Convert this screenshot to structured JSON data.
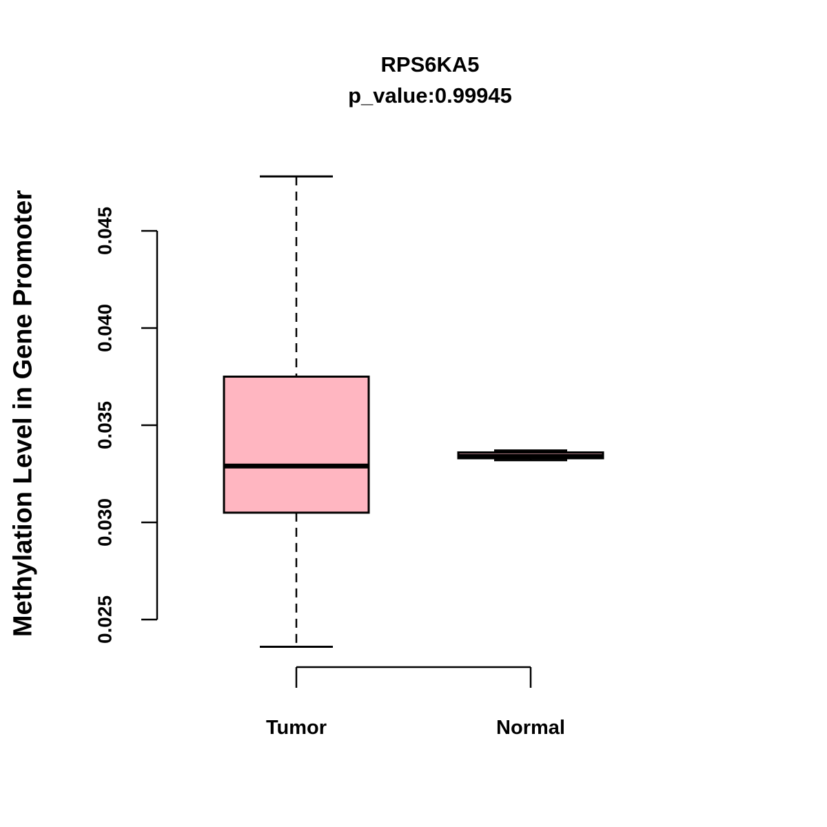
{
  "chart_data": {
    "type": "boxplot",
    "title": "RPS6KA5",
    "subtitle": "p_value:0.99945",
    "ylabel": "Methylation Level in Gene Promoter",
    "xlabel": "",
    "categories": [
      "Tumor",
      "Normal"
    ],
    "yticks": [
      0.025,
      0.03,
      0.035,
      0.04,
      0.045
    ],
    "ylim": [
      0.0236,
      0.0478
    ],
    "grid": false,
    "legend": "none",
    "series": [
      {
        "name": "Tumor",
        "min": 0.0236,
        "q1": 0.0305,
        "median": 0.0329,
        "q3": 0.0375,
        "max": 0.0478,
        "fill": "#FFB6C1"
      },
      {
        "name": "Normal",
        "min": 0.0332,
        "q1": 0.0333,
        "median": 0.0334,
        "q3": 0.0336,
        "max": 0.0337,
        "fill": "#FFB6C1"
      }
    ],
    "colors": {
      "box_fill": "#FFB6C1",
      "stroke": "#000000",
      "background": "#FFFFFF"
    }
  }
}
